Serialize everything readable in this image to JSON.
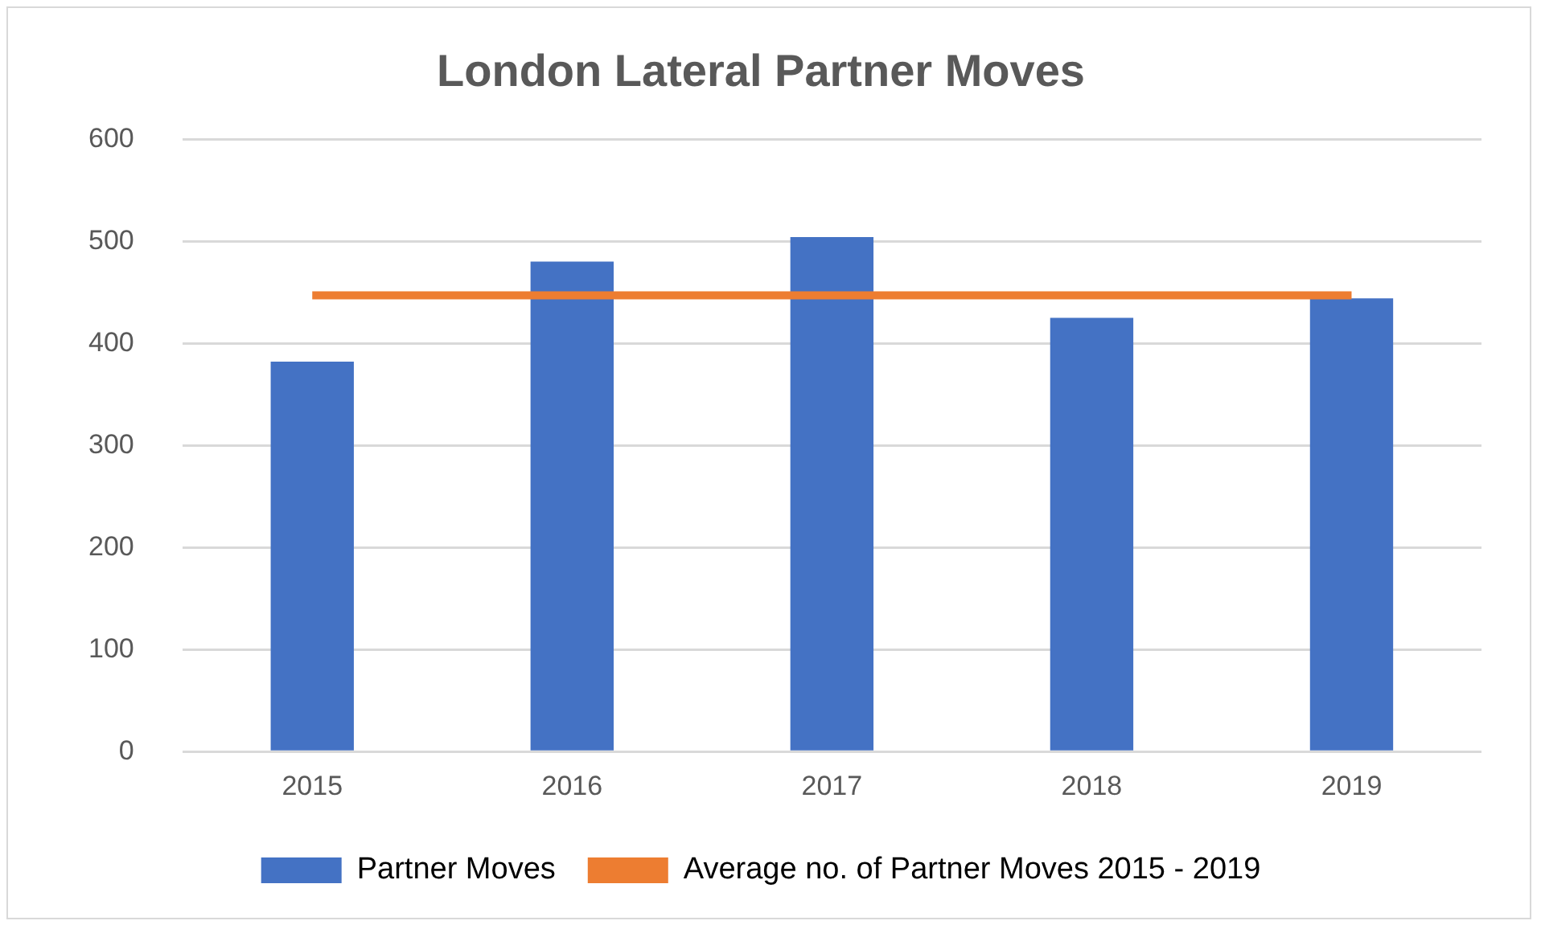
{
  "chart_data": {
    "type": "bar",
    "title": "London Lateral Partner Moves",
    "categories": [
      "2015",
      "2016",
      "2017",
      "2018",
      "2019"
    ],
    "series": [
      {
        "name": "Partner Moves",
        "color": "#4472c4",
        "values": [
          382,
          480,
          504,
          425,
          444
        ]
      },
      {
        "name": "Average no. of Partner Moves 2015 - 2019",
        "type": "line",
        "color": "#ed7d31",
        "values": [
          447,
          447,
          447,
          447,
          447
        ]
      }
    ],
    "ylim": [
      0,
      600
    ],
    "yticks": [
      0,
      100,
      200,
      300,
      400,
      500,
      600
    ],
    "grid": "y",
    "legend": "bottom",
    "marker": "none"
  }
}
